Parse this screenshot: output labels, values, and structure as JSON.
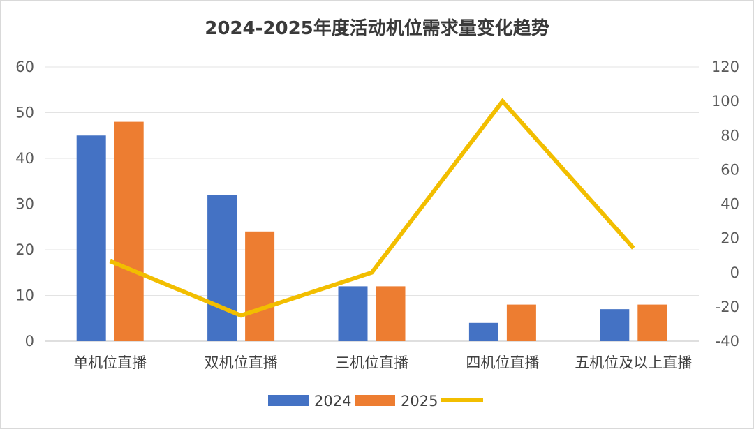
{
  "chart_data": {
    "type": "bar",
    "title": "2024-2025年度活动机位需求量变化趋势",
    "categories": [
      "单机位直播",
      "双机位直播",
      "三机位直播",
      "四机位直播",
      "五机位及以上直播"
    ],
    "series": [
      {
        "name": "2024",
        "type": "bar",
        "axis": "left",
        "color": "#4472C4",
        "values": [
          45,
          32,
          12,
          4,
          7
        ]
      },
      {
        "name": "2025",
        "type": "bar",
        "axis": "left",
        "color": "#ED7D31",
        "values": [
          48,
          24,
          12,
          8,
          8
        ]
      },
      {
        "type": "line",
        "axis": "right",
        "color": "#F2BE00",
        "values": [
          6.7,
          -25,
          0,
          100,
          14.3
        ]
      }
    ],
    "y_left": {
      "min": 0,
      "max": 60,
      "step": 10,
      "ticks": [
        "0",
        "10",
        "20",
        "30",
        "40",
        "50",
        "60"
      ]
    },
    "y_right": {
      "min": -40,
      "max": 120,
      "step": 20,
      "ticks": [
        "-40",
        "-20",
        "0",
        "20",
        "40",
        "60",
        "80",
        "100",
        "120"
      ]
    },
    "grid": true,
    "legend_position": "bottom"
  }
}
